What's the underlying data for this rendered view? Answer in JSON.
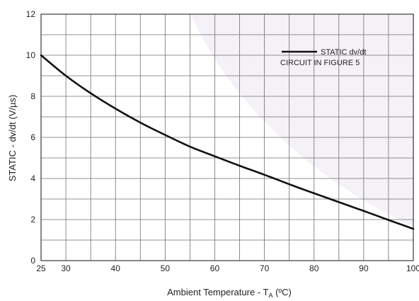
{
  "chart_data": {
    "type": "line",
    "xlabel": "Ambient Temperature - T",
    "xlabel_subscript": "A",
    "xlabel_unit": " (ºC)",
    "ylabel": "STATIC - dv/dt (V/µs)",
    "xlim": [
      25,
      100
    ],
    "ylim": [
      0,
      12
    ],
    "x_ticks": [
      25,
      30,
      40,
      50,
      60,
      70,
      80,
      90,
      100
    ],
    "y_ticks": [
      0,
      2,
      4,
      6,
      8,
      10,
      12
    ],
    "x_grid": [
      25,
      30,
      35,
      40,
      45,
      50,
      55,
      60,
      65,
      70,
      75,
      80,
      85,
      90,
      95,
      100
    ],
    "y_grid": [
      0,
      1,
      2,
      3,
      4,
      5,
      6,
      7,
      8,
      9,
      10,
      11,
      12
    ],
    "grid": true,
    "legend_position": "top-right",
    "series": [
      {
        "name": "STATIC dv/dt",
        "color": "#111111",
        "x": [
          25,
          30,
          35,
          40,
          45,
          50,
          55,
          60,
          65,
          70,
          75,
          80,
          85,
          90,
          95,
          100
        ],
        "y": [
          10.0,
          9.0,
          8.15,
          7.4,
          6.72,
          6.12,
          5.55,
          5.08,
          4.62,
          4.18,
          3.72,
          3.28,
          2.85,
          2.42,
          1.98,
          1.55
        ]
      }
    ],
    "annotation": "CIRCUIT IN FIGURE 5"
  }
}
